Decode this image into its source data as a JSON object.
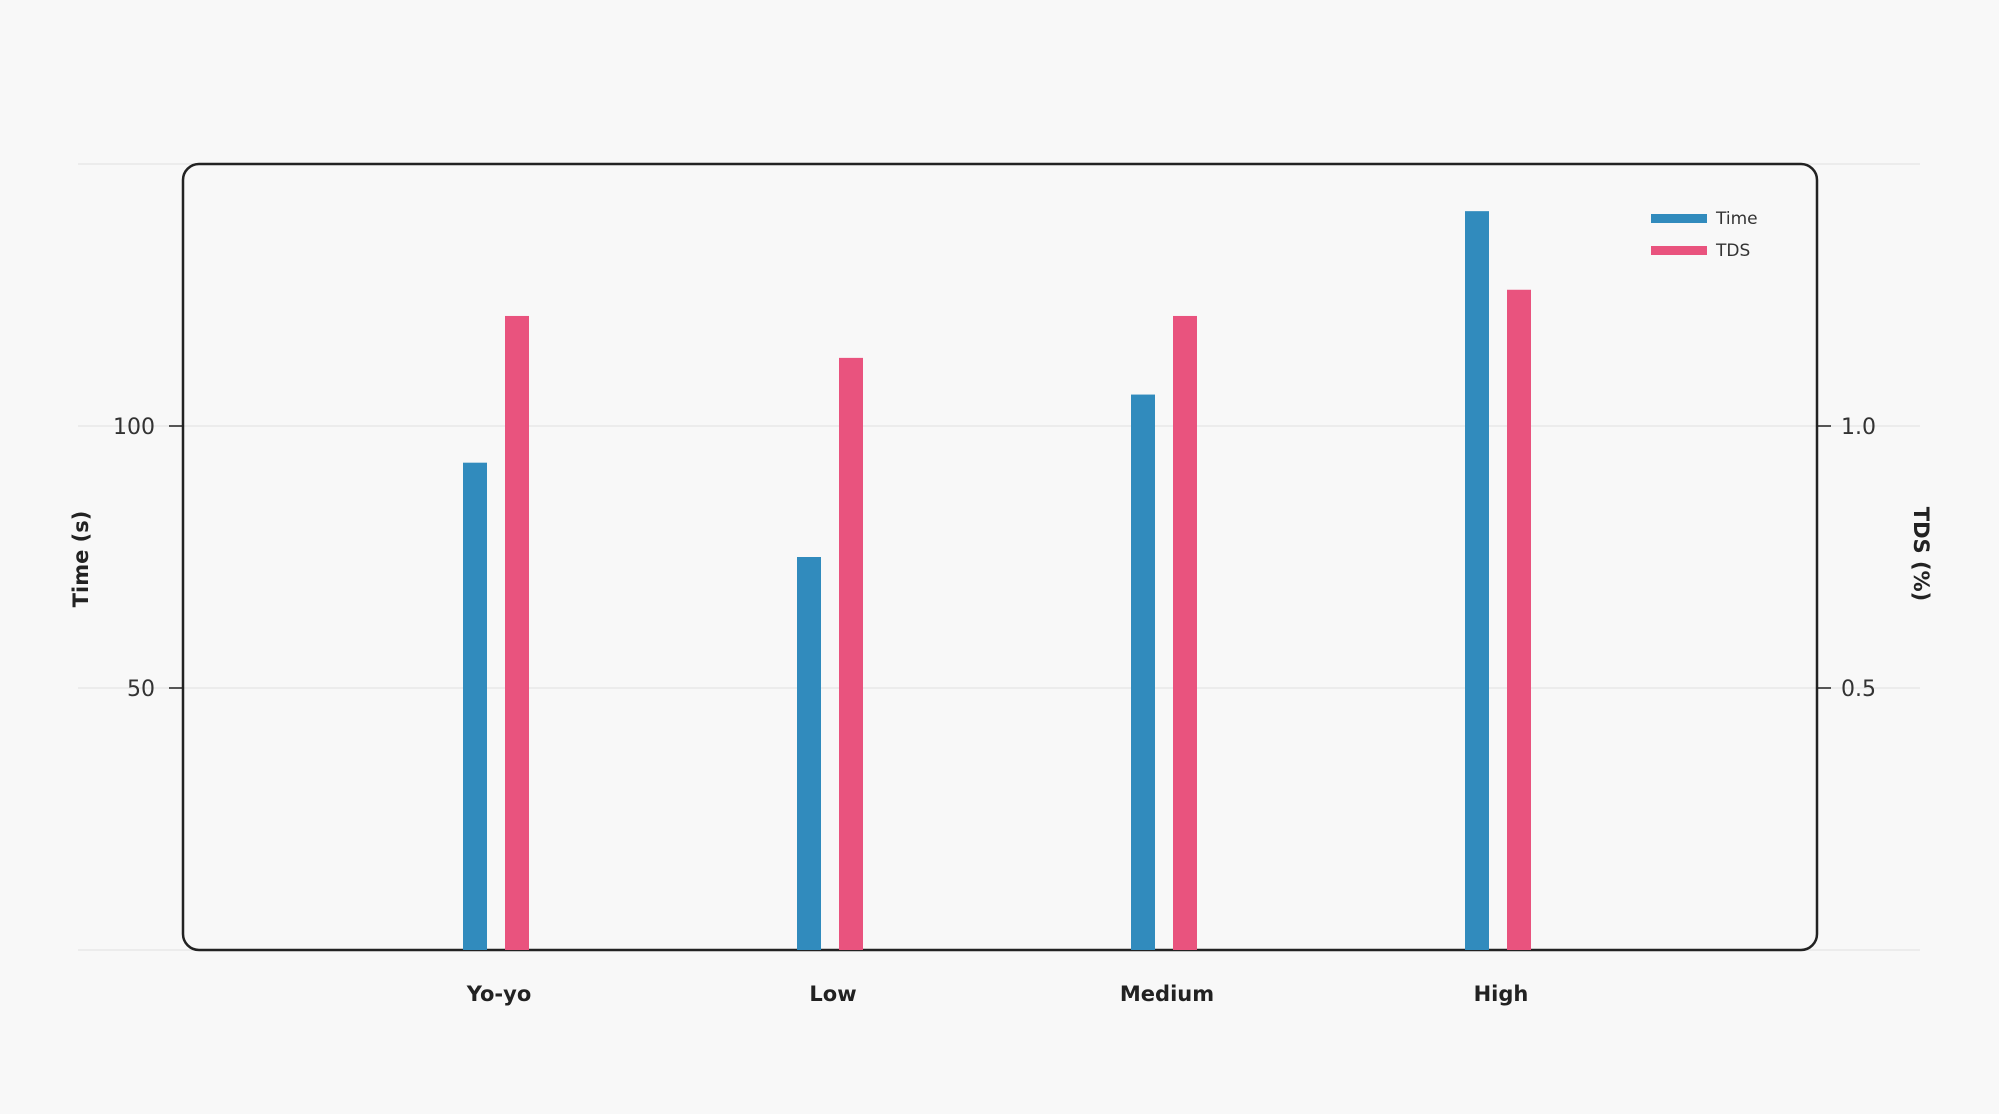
{
  "chart_data": {
    "type": "bar",
    "categories": [
      "Yo-yo",
      "Low",
      "Medium",
      "High"
    ],
    "series": [
      {
        "name": "Time",
        "axis": "left",
        "color": "#318bbd",
        "values": [
          93,
          75,
          106,
          141
        ]
      },
      {
        "name": "TDS",
        "axis": "right",
        "color": "#e9537e",
        "values": [
          1.21,
          1.13,
          1.21,
          1.26
        ]
      }
    ],
    "ylabel": "Time (s)",
    "y2label": "TDS (%)",
    "ylim": [
      0,
      150
    ],
    "y2lim": [
      0,
      1.5
    ],
    "yticks": [
      50,
      100
    ],
    "ytick_labels": [
      "50",
      "100"
    ],
    "y2ticks": [
      0.5,
      1.0
    ],
    "y2tick_labels": [
      "0.5",
      "1.0"
    ],
    "grid": true,
    "legend": "top-right"
  }
}
